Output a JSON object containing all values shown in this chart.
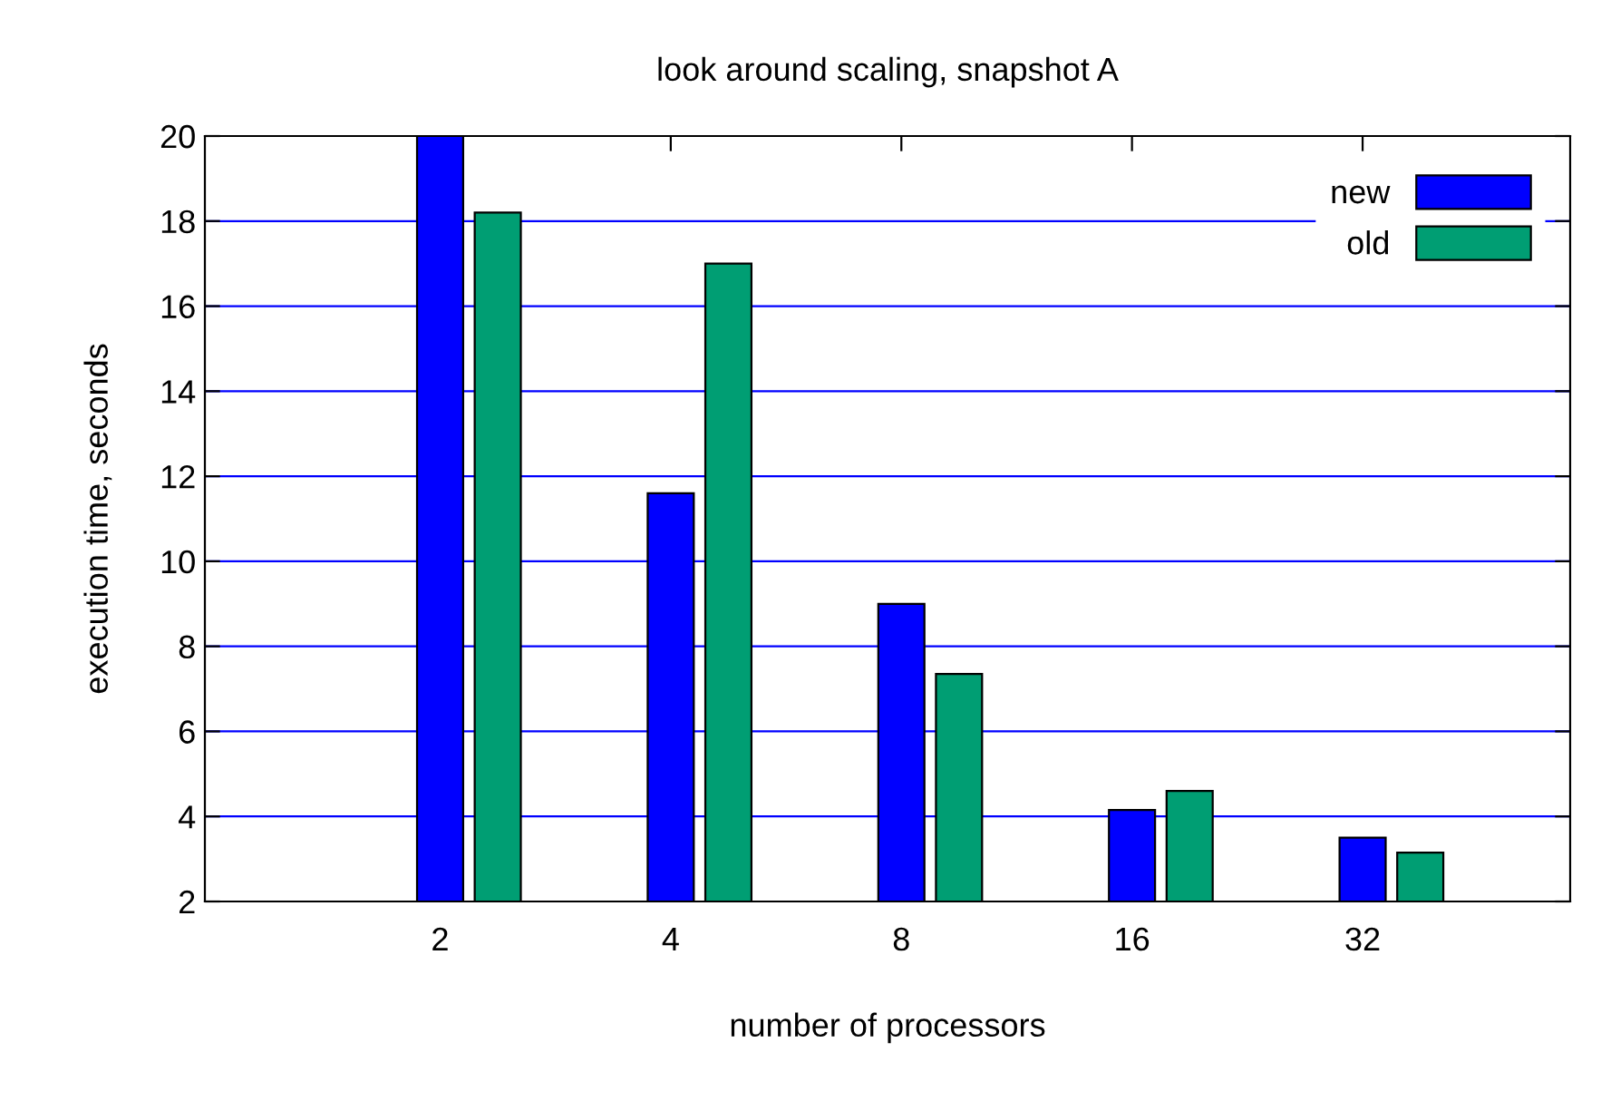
{
  "chart_data": {
    "type": "bar",
    "title": "look around scaling, snapshot A",
    "xlabel": "number of processors",
    "ylabel": "execution time, seconds",
    "categories": [
      "2",
      "4",
      "8",
      "16",
      "32"
    ],
    "series": [
      {
        "name": "new",
        "color": "#0000ff",
        "values": [
          20,
          11.6,
          9.0,
          4.15,
          3.5
        ]
      },
      {
        "name": "old",
        "color": "#009e73",
        "values": [
          18.2,
          17.0,
          7.35,
          4.6,
          3.15
        ]
      }
    ],
    "ylim": [
      2,
      20
    ],
    "yticks": [
      2,
      4,
      6,
      8,
      10,
      12,
      14,
      16,
      18,
      20
    ],
    "grid": "y",
    "legend": "top right"
  }
}
